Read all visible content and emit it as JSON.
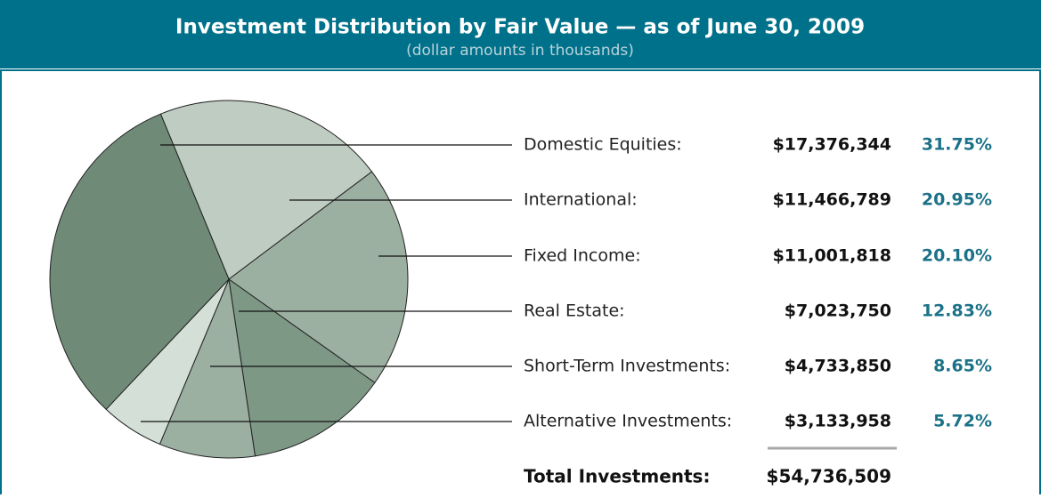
{
  "chart_data": {
    "type": "pie",
    "title": "Investment Distribution by Fair Value — as of June 30, 2009",
    "subtitle": "(dollar amounts in thousands)",
    "categories": [
      "Domestic Equities:",
      "International:",
      "Fixed Income:",
      "Real Estate:",
      "Short-Term Investments:",
      "Alternative Investments:"
    ],
    "values": [
      31.75,
      20.95,
      20.1,
      12.83,
      8.65,
      5.72
    ],
    "value_labels": [
      "31.75%",
      "20.95%",
      "20.10%",
      "12.83%",
      "8.65%",
      "5.72%"
    ],
    "amounts": [
      "$17,376,344",
      "$11,466,789",
      "$11,001,818",
      "$7,023,750",
      "$4,733,850",
      "$3,133,958"
    ],
    "colors": [
      "#6f8a77",
      "#bfccc2",
      "#9cb0a2",
      "#7e9886",
      "#9cb0a2",
      "#d4dfd7"
    ],
    "total_label": "Total Investments:",
    "total_amount": "$54,736,509"
  }
}
